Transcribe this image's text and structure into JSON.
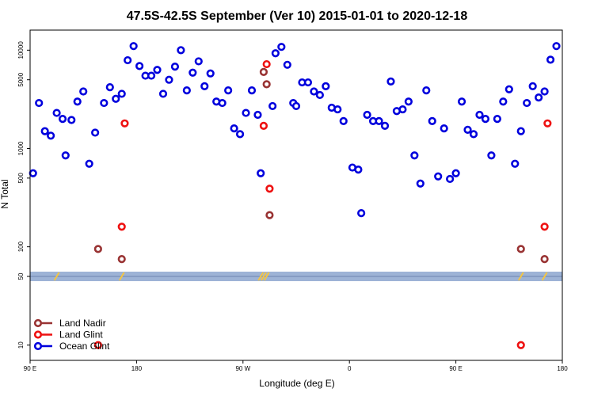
{
  "chart_data": {
    "type": "scatter",
    "title": "47.5S-42.5S September (Ver 10)   2015-01-01 to 2020-12-18",
    "xlabel": "Longitude (deg E)",
    "ylabel": "N Total",
    "x_ticks": [
      {
        "value": 90,
        "label": "90 E"
      },
      {
        "value": 180,
        "label": "180"
      },
      {
        "value": 270,
        "label": "90 W"
      },
      {
        "value": 360,
        "label": "0"
      },
      {
        "value": 450,
        "label": "90 E"
      },
      {
        "value": 540,
        "label": "180"
      }
    ],
    "xlim": [
      90,
      540
    ],
    "y_scale": "log",
    "ylim": [
      7,
      16000
    ],
    "y_ticks": [
      10,
      50,
      100,
      500,
      1000,
      5000,
      10000
    ],
    "threshold_band": {
      "value": 50,
      "color": "#9db3d6"
    },
    "colors": {
      "land_nadir": "#993333",
      "land_glint": "#ee1111",
      "ocean_glint": "#0000dd",
      "band_marks": "#f5c542"
    },
    "legend": {
      "position": "bottom-left"
    },
    "series": [
      {
        "name": "Land Nadir",
        "color": "#993333",
        "points": [
          [
            147.5,
            95
          ],
          [
            167.5,
            75
          ],
          [
            287.5,
            6000
          ],
          [
            290,
            4500
          ],
          [
            292.5,
            210
          ],
          [
            505,
            95
          ],
          [
            525,
            75
          ]
        ]
      },
      {
        "name": "Land Glint",
        "color": "#ee1111",
        "points": [
          [
            147.5,
            10
          ],
          [
            170,
            1800
          ],
          [
            167.5,
            160
          ],
          [
            287.5,
            1700
          ],
          [
            290,
            7200
          ],
          [
            292.5,
            390
          ],
          [
            505,
            10
          ],
          [
            527.5,
            1800
          ],
          [
            525,
            160
          ]
        ]
      },
      {
        "name": "Ocean Glint",
        "color": "#0000dd",
        "points": [
          [
            92.5,
            560
          ],
          [
            97.5,
            2900
          ],
          [
            102.5,
            1500
          ],
          [
            107.5,
            1350
          ],
          [
            112.5,
            2300
          ],
          [
            117.5,
            2000
          ],
          [
            120,
            850
          ],
          [
            125,
            1950
          ],
          [
            130,
            3000
          ],
          [
            135,
            3800
          ],
          [
            140,
            700
          ],
          [
            145,
            1450
          ],
          [
            152.5,
            2900
          ],
          [
            157.5,
            4200
          ],
          [
            162.5,
            3200
          ],
          [
            167.5,
            3600
          ],
          [
            172.5,
            7900
          ],
          [
            177.5,
            11000
          ],
          [
            182.5,
            6900
          ],
          [
            187.5,
            5500
          ],
          [
            192.5,
            5500
          ],
          [
            197.5,
            6300
          ],
          [
            202.5,
            3600
          ],
          [
            207.5,
            5000
          ],
          [
            212.5,
            6800
          ],
          [
            217.5,
            10000
          ],
          [
            222.5,
            3900
          ],
          [
            227.5,
            5900
          ],
          [
            232.5,
            7700
          ],
          [
            237.5,
            4300
          ],
          [
            242.5,
            5800
          ],
          [
            247.5,
            3000
          ],
          [
            252.5,
            2900
          ],
          [
            257.5,
            3900
          ],
          [
            262.5,
            1600
          ],
          [
            267.5,
            1400
          ],
          [
            272.5,
            2300
          ],
          [
            277.5,
            3900
          ],
          [
            282.5,
            2200
          ],
          [
            285,
            560
          ],
          [
            295,
            2700
          ],
          [
            297.5,
            9300
          ],
          [
            302.5,
            10800
          ],
          [
            307.5,
            7100
          ],
          [
            312.5,
            2900
          ],
          [
            315,
            2700
          ],
          [
            320,
            4700
          ],
          [
            325,
            4700
          ],
          [
            330,
            3800
          ],
          [
            335,
            3500
          ],
          [
            340,
            4300
          ],
          [
            345,
            2600
          ],
          [
            350,
            2500
          ],
          [
            355,
            1900
          ],
          [
            362.5,
            640
          ],
          [
            367.5,
            610
          ],
          [
            370,
            220
          ],
          [
            375,
            2200
          ],
          [
            380,
            1900
          ],
          [
            385,
            1900
          ],
          [
            390,
            1700
          ],
          [
            395,
            4800
          ],
          [
            400,
            2400
          ],
          [
            405,
            2500
          ],
          [
            410,
            3000
          ],
          [
            415,
            850
          ],
          [
            420,
            440
          ],
          [
            425,
            3900
          ],
          [
            430,
            1900
          ],
          [
            435,
            520
          ],
          [
            440,
            1600
          ],
          [
            445,
            490
          ],
          [
            450,
            560
          ],
          [
            455,
            3000
          ],
          [
            460,
            1550
          ],
          [
            465,
            1400
          ],
          [
            470,
            2200
          ],
          [
            475,
            2000
          ],
          [
            480,
            850
          ],
          [
            485,
            2000
          ],
          [
            490,
            3000
          ],
          [
            495,
            4000
          ],
          [
            500,
            700
          ],
          [
            505,
            1500
          ],
          [
            510,
            2900
          ],
          [
            515,
            4300
          ],
          [
            520,
            3300
          ],
          [
            525,
            3800
          ],
          [
            530,
            8000
          ],
          [
            535,
            11000
          ]
        ]
      }
    ],
    "band_markers": [
      [
        112.5,
        50
      ],
      [
        167.5,
        50
      ],
      [
        285,
        50
      ],
      [
        287.5,
        50
      ],
      [
        290,
        50
      ],
      [
        505,
        50
      ],
      [
        525,
        50
      ]
    ]
  }
}
